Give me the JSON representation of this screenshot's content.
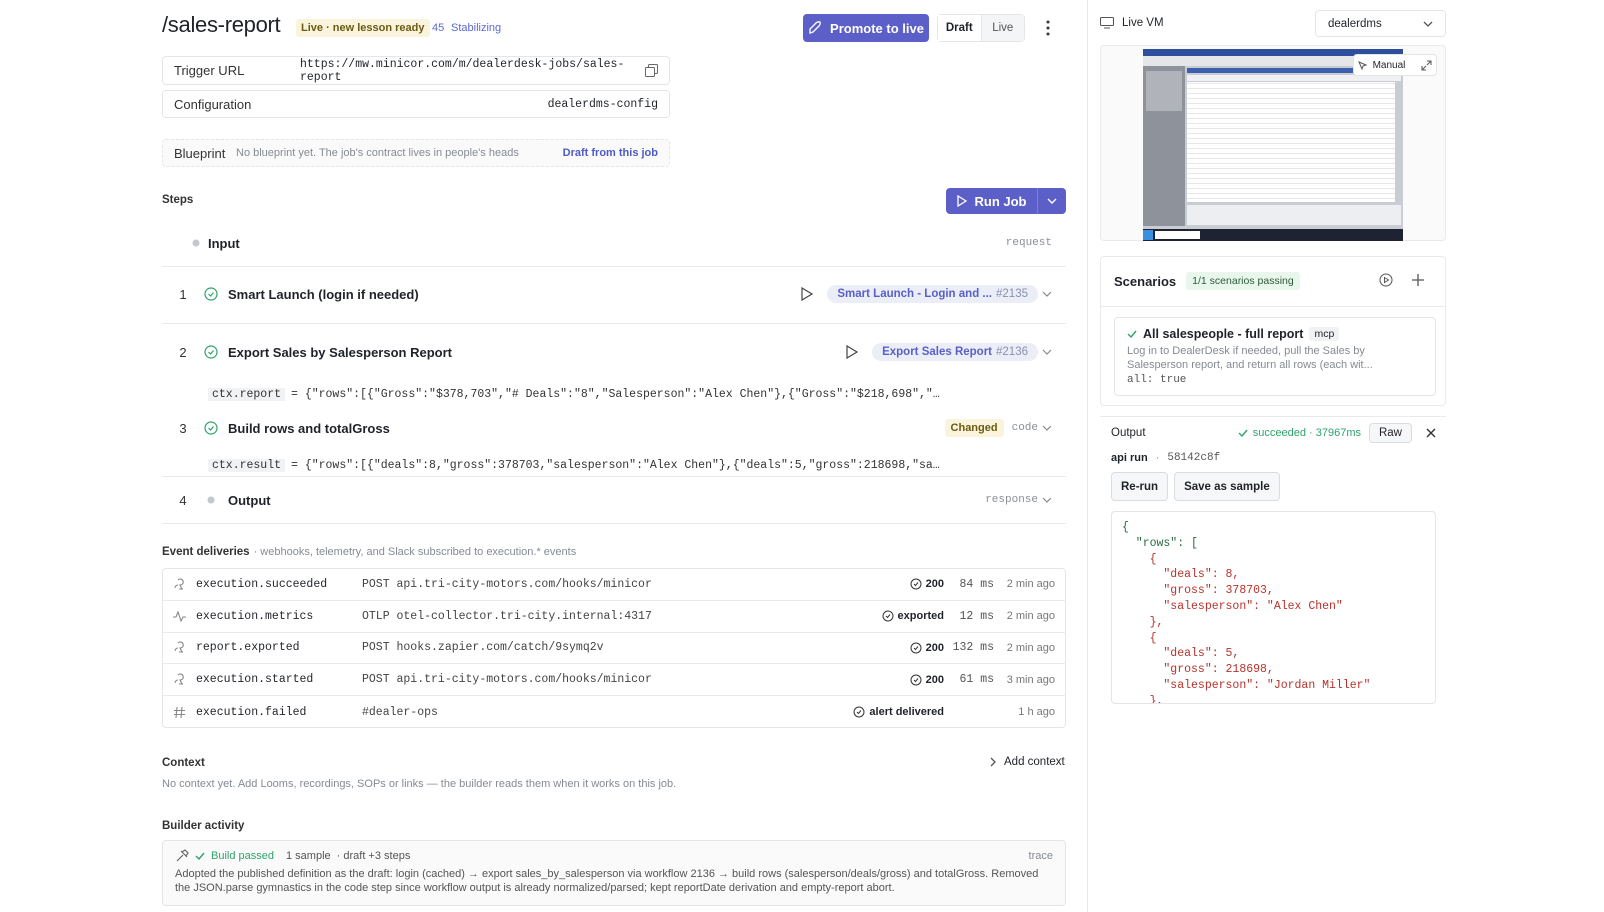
{
  "header": {
    "title": "/sales-report",
    "badge": "Live · new lesson ready",
    "count": 45,
    "status": "Stabilizing",
    "promote": "Promote to live",
    "tabs": [
      "Draft",
      "Live"
    ]
  },
  "trigger": {
    "label": "Trigger URL",
    "value": "https://mw.minicor.com/m/dealerdesk-jobs/sales-report"
  },
  "configuration": {
    "label": "Configuration",
    "value": "dealerdms-config"
  },
  "blueprint": {
    "label": "Blueprint",
    "text": "No blueprint yet. The job's contract lives in people's heads",
    "action": "Draft from this job"
  },
  "steps": {
    "title": "Steps",
    "run": "Run Job",
    "input": {
      "name": "Input",
      "kind": "request"
    },
    "items": [
      {
        "number": 1,
        "name": "Smart Launch (login if needed)",
        "workflow": "Smart Launch - Login and ...",
        "id": "#2135"
      },
      {
        "number": 2,
        "name": "Export Sales by Salesperson Report",
        "workflow": "Export Sales Report",
        "id": "#2136",
        "ctx_key": "ctx.report",
        "ctx_value": "= {\"rows\":[{\"Gross\":\"$378,703\",\"# Deals\":\"8\",\"Salesperson\":\"Alex Chen\"},{\"Gross\":\"$218,698\",\"# Deals\":"
      },
      {
        "number": 3,
        "name": "Build rows and totalGross",
        "badge": "Changed",
        "kind": "code",
        "ctx_key": "ctx.result",
        "ctx_value": "= {\"rows\":[{\"deals\":8,\"gross\":378703,\"salesperson\":\"Alex Chen\"},{\"deals\":5,\"gross\":218698,\"salesperson"
      },
      {
        "number": 4,
        "name": "Output",
        "kind": "response"
      }
    ]
  },
  "events": {
    "title": "Event deliveries",
    "subtitle": "· webhooks, telemetry, and Slack subscribed to execution.* events",
    "rows": [
      {
        "name": "execution.succeeded",
        "target": "POST api.tri-city-motors.com/hooks/minicor",
        "status": 200,
        "duration": "84 ms",
        "time": "2 min ago"
      },
      {
        "name": "execution.metrics",
        "target": "OTLP otel-collector.tri-city.internal:4317",
        "status": "exported",
        "duration": "12 ms",
        "time": "2 min ago"
      },
      {
        "name": "report.exported",
        "target": "POST hooks.zapier.com/catch/9symq2v",
        "status": 200,
        "duration": "132 ms",
        "time": "2 min ago"
      },
      {
        "name": "execution.started",
        "target": "POST api.tri-city-motors.com/hooks/minicor",
        "status": 200,
        "duration": "61 ms",
        "time": "3 min ago"
      },
      {
        "name": "execution.failed",
        "target": "#dealer-ops",
        "status": "alert delivered",
        "time": "1 h ago"
      }
    ]
  },
  "context": {
    "title": "Context",
    "action": "Add context",
    "text": "No context yet. Add Looms, recordings, SOPs or links — the builder reads them when it works on this job."
  },
  "builder": {
    "title": "Builder activity",
    "status": "Build passed",
    "samples": "1 sample",
    "draft": "· draft +3 steps",
    "trace": "trace",
    "text": "Adopted the published definition as the draft: login (cached) → export sales_by_salesperson via workflow 2136 → build rows (salesperson/deals/gross) and totalGross. Removed the JSON.parse gymnastics in the code step since workflow output is already normalized/parsed; kept reportDate derivation and empty-report abort."
  },
  "vm": {
    "label": "Live VM",
    "select": "dealerdms",
    "manual": "Manual"
  },
  "scenarios": {
    "title": "Scenarios",
    "badge": "1/1 scenarios passing",
    "items": [
      {
        "name": "All salespeople - full report",
        "tag": "mcp",
        "desc": "Log in to DealerDesk if needed, pull the Sales by Salesperson report, and return all rows (each wit...",
        "assert": "all: true"
      }
    ]
  },
  "output": {
    "title": "Output",
    "status": "succeeded · 37967ms",
    "raw": "Raw",
    "source": "api run",
    "id": "58142c8f",
    "buttons": [
      "Re-run",
      "Save as sample"
    ],
    "code": [
      "{",
      "  \"rows\": [",
      "    {",
      "      \"deals\": 8,",
      "      \"gross\": 378703,",
      "      \"salesperson\": \"Alex Chen\"",
      "    },",
      "    {",
      "      \"deals\": 5,",
      "      \"gross\": 218698,",
      "      \"salesperson\": \"Jordan Miller\"",
      "    },"
    ]
  }
}
